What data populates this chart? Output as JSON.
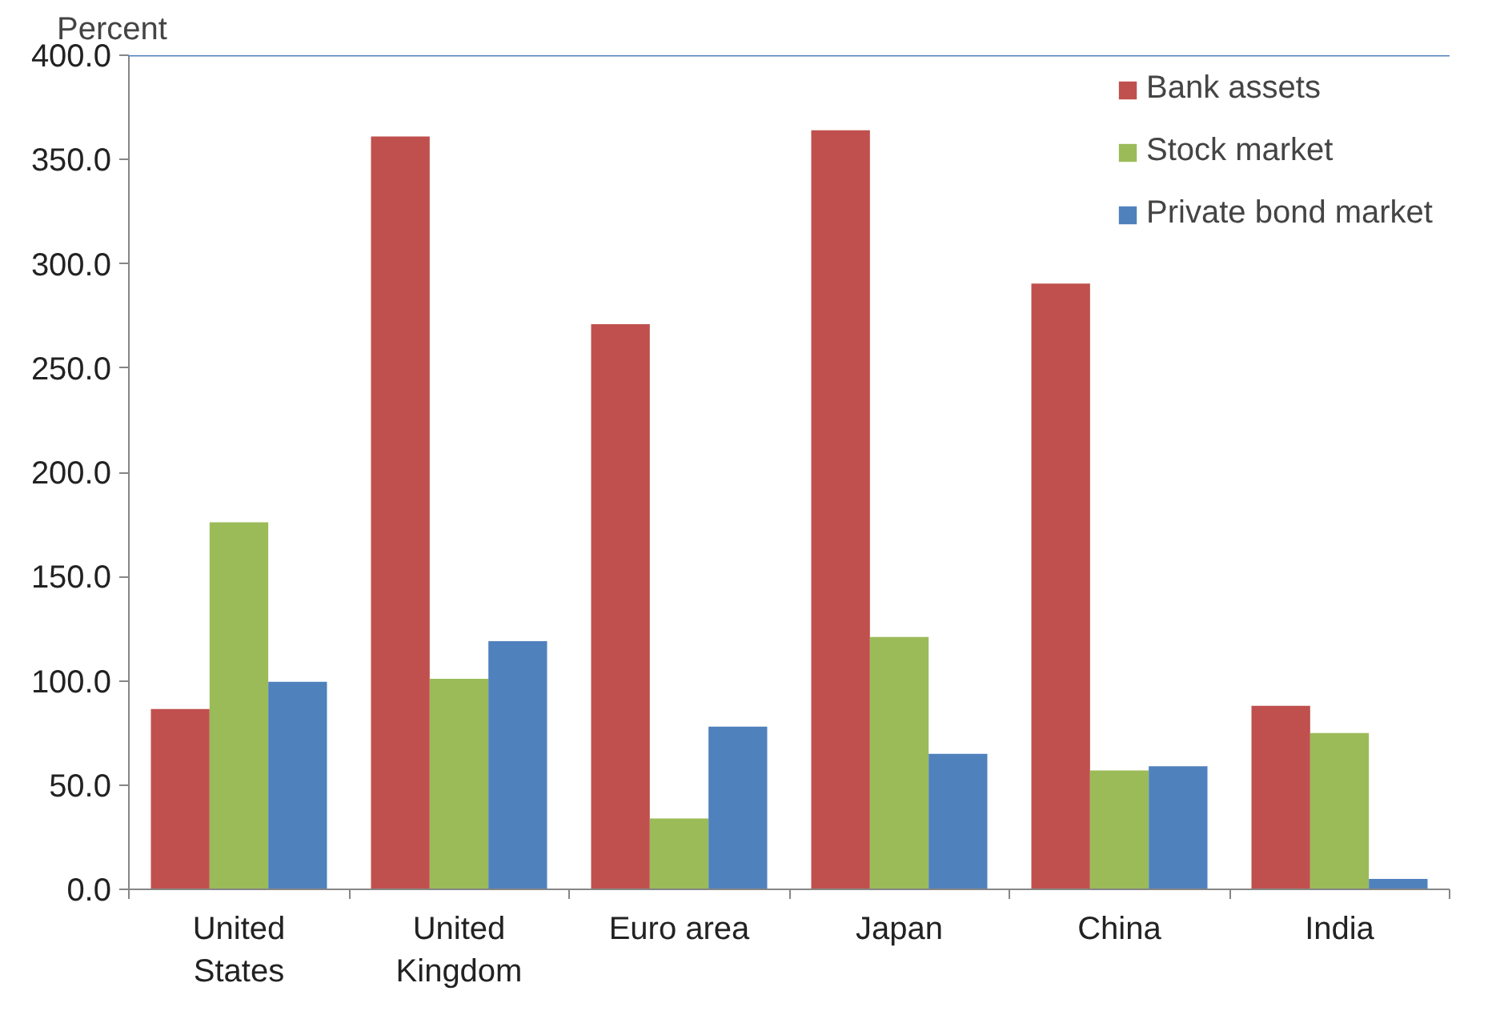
{
  "chart_data": {
    "type": "bar",
    "ylabel": "Percent",
    "categories": [
      "United States",
      "United Kingdom",
      "Euro area",
      "Japan",
      "China",
      "India"
    ],
    "series": [
      {
        "name": "Bank assets",
        "color": "#c0504d",
        "values": [
          86.5,
          361,
          271,
          364,
          290.5,
          88
        ]
      },
      {
        "name": "Stock market",
        "color": "#9bbb59",
        "values": [
          176,
          101,
          34,
          121,
          57,
          75
        ]
      },
      {
        "name": "Private bond market",
        "color": "#4f81bd",
        "values": [
          99.5,
          119,
          78,
          65,
          59,
          5
        ]
      }
    ],
    "ylim": [
      0,
      400
    ],
    "yticks": [
      {
        "value": 0,
        "label": "0.0"
      },
      {
        "value": 50,
        "label": "50.0"
      },
      {
        "value": 100,
        "label": "100.0"
      },
      {
        "value": 150,
        "label": "150.0"
      },
      {
        "value": 200,
        "label": "200.0"
      },
      {
        "value": 250,
        "label": "250.0"
      },
      {
        "value": 300,
        "label": "300.0"
      },
      {
        "value": 350,
        "label": "350.0"
      },
      {
        "value": 400,
        "label": "400.0"
      }
    ],
    "grid": false,
    "legend": "top right"
  }
}
